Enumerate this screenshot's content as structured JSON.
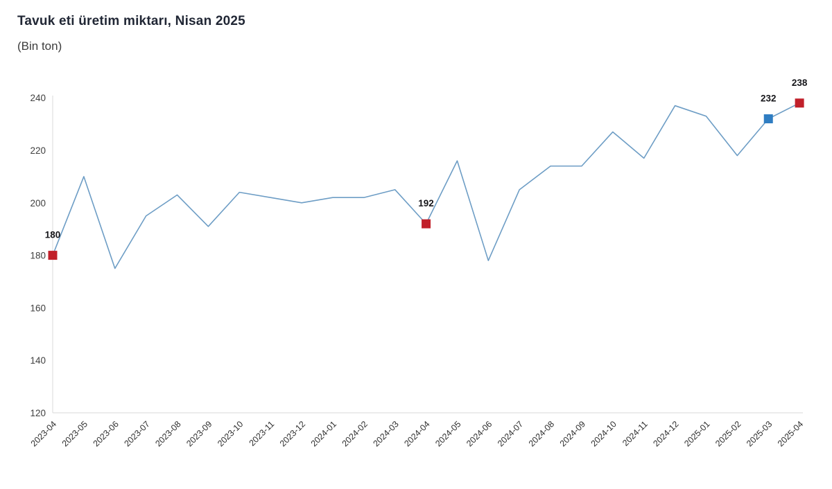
{
  "header": {
    "title": "Tavuk eti üretim miktarı, Nisan 2025",
    "subtitle": "(Bin ton)"
  },
  "chart_data": {
    "type": "line",
    "title": "Tavuk eti üretim miktarı, Nisan 2025",
    "subtitle": "(Bin ton)",
    "categories": [
      "2023-04",
      "2023-05",
      "2023-06",
      "2023-07",
      "2023-08",
      "2023-09",
      "2023-10",
      "2023-11",
      "2023-12",
      "2024-01",
      "2024-02",
      "2024-03",
      "2024-04",
      "2024-05",
      "2024-06",
      "2024-07",
      "2024-08",
      "2024-09",
      "2024-10",
      "2024-11",
      "2024-12",
      "2025-01",
      "2025-02",
      "2025-03",
      "2025-04"
    ],
    "values": [
      180,
      210,
      175,
      195,
      203,
      191,
      204,
      202,
      200,
      202,
      202,
      205,
      192,
      216,
      178,
      205,
      214,
      214,
      227,
      217,
      237,
      233,
      218,
      232,
      238
    ],
    "ylim": [
      120,
      240
    ],
    "yticks": [
      120,
      140,
      160,
      180,
      200,
      220,
      240
    ],
    "grid": false,
    "legend": "none",
    "line_color": "#6D9DC5",
    "axis_color": "#D8D8D8",
    "tick_label_color": "#3F3F3F",
    "x_label_color": "#2F2F2F",
    "data_label_color": "#16161A",
    "annotations": [
      {
        "category": "2023-04",
        "value": 180,
        "label": "180",
        "marker_color": "#C1202A"
      },
      {
        "category": "2024-04",
        "value": 192,
        "label": "192",
        "marker_color": "#C1202A"
      },
      {
        "category": "2025-03",
        "value": 232,
        "label": "232",
        "marker_color": "#2F7DC2"
      },
      {
        "category": "2025-04",
        "value": 238,
        "label": "238",
        "marker_color": "#C1202A"
      }
    ]
  }
}
